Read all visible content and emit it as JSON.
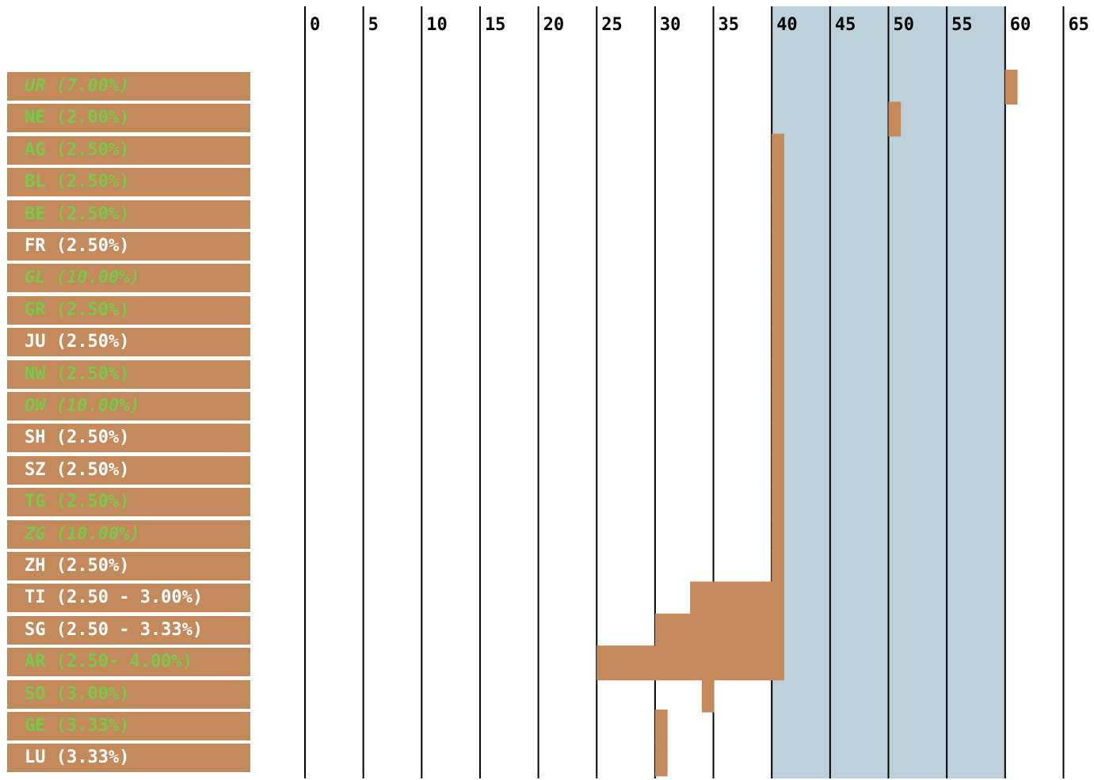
{
  "chart_data": {
    "type": "bar",
    "title": "",
    "xlabel": "",
    "ylabel": "",
    "xlim": [
      0,
      65
    ],
    "x_ticks": [
      "0",
      "5",
      "10",
      "15",
      "20",
      "25",
      "30",
      "35",
      "40",
      "45",
      "50",
      "55",
      "60",
      "65"
    ],
    "highlight_band": [
      40,
      60
    ],
    "colors": {
      "bar": "#c48a5c",
      "band": "#bcd1d9",
      "green_text": "#78c84a",
      "white_text": "#ffffff"
    },
    "categories": [
      {
        "label": "UR (7.00%)",
        "style": "green-italic",
        "start": 60,
        "end": 61
      },
      {
        "label": "NE (2.00%)",
        "style": "green",
        "start": 50,
        "end": 51
      },
      {
        "label": "AG (2.50%)",
        "style": "green",
        "start": 40,
        "end": 41
      },
      {
        "label": "BL (2.50%)",
        "style": "green",
        "start": 40,
        "end": 41
      },
      {
        "label": "BE (2.50%)",
        "style": "green",
        "start": 40,
        "end": 41
      },
      {
        "label": "FR (2.50%)",
        "style": "white",
        "start": 40,
        "end": 41
      },
      {
        "label": "GL (10.00%)",
        "style": "green-italic",
        "start": 40,
        "end": 41
      },
      {
        "label": "GR (2.50%)",
        "style": "green",
        "start": 40,
        "end": 41
      },
      {
        "label": "JU (2.50%)",
        "style": "white",
        "start": 40,
        "end": 41
      },
      {
        "label": "NW (2.50%)",
        "style": "green",
        "start": 40,
        "end": 41
      },
      {
        "label": "OW (10.00%)",
        "style": "green-italic",
        "start": 40,
        "end": 41
      },
      {
        "label": "SH (2.50%)",
        "style": "white",
        "start": 40,
        "end": 41
      },
      {
        "label": "SZ (2.50%)",
        "style": "white",
        "start": 40,
        "end": 41
      },
      {
        "label": "TG (2.50%)",
        "style": "green",
        "start": 40,
        "end": 41
      },
      {
        "label": "ZG (10.00%)",
        "style": "green-italic",
        "start": 40,
        "end": 41
      },
      {
        "label": "ZH (2.50%)",
        "style": "white",
        "start": 40,
        "end": 41
      },
      {
        "label": "TI (2.50 - 3.00%)",
        "style": "white",
        "start": 33,
        "end": 41
      },
      {
        "label": "SG (2.50 - 3.33%)",
        "style": "white",
        "start": 30,
        "end": 41
      },
      {
        "label": "AR (2.50- 4.00%)",
        "style": "green",
        "start": 25,
        "end": 41
      },
      {
        "label": "SO (3.00%)",
        "style": "green",
        "start": 34,
        "end": 35
      },
      {
        "label": "GE (3.33%)",
        "style": "green",
        "start": 30,
        "end": 31
      },
      {
        "label": "LU (3.33%)",
        "style": "white",
        "start": 30,
        "end": 31
      }
    ]
  }
}
